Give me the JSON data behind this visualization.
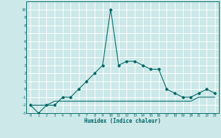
{
  "xlabel": "Humidex (Indice chaleur)",
  "x": [
    0,
    1,
    2,
    3,
    4,
    5,
    6,
    7,
    8,
    9,
    10,
    11,
    12,
    13,
    14,
    15,
    16,
    17,
    18,
    19,
    20,
    21,
    22,
    23
  ],
  "line1": [
    -2,
    -3,
    -2,
    -2,
    -1,
    -1,
    0,
    1,
    2,
    3,
    10,
    3,
    3.5,
    3.5,
    3,
    2.5,
    2.5,
    0,
    -0.5,
    -1,
    -1,
    -0.5,
    0,
    -0.5
  ],
  "line2": [
    -2,
    -2,
    -2,
    -1.5,
    -1.5,
    -1.5,
    -1.5,
    -1.5,
    -1.5,
    -1.5,
    -1.5,
    -1.5,
    -1.5,
    -1.5,
    -1.5,
    -1.5,
    -1.5,
    -1.5,
    -1.5,
    -1.5,
    -1.5,
    -1,
    -1,
    -1
  ],
  "line_color": "#006666",
  "bg_color": "#cce8e8",
  "grid_color": "#ffffff",
  "ylim": [
    -3,
    11
  ],
  "xlim": [
    -0.5,
    23.5
  ],
  "yticks": [
    -3,
    -2,
    -1,
    0,
    1,
    2,
    3,
    4,
    5,
    6,
    7,
    8,
    9,
    10
  ],
  "xticks": [
    0,
    1,
    2,
    3,
    4,
    5,
    6,
    7,
    8,
    9,
    10,
    11,
    12,
    13,
    14,
    15,
    16,
    17,
    18,
    19,
    20,
    21,
    22,
    23
  ]
}
